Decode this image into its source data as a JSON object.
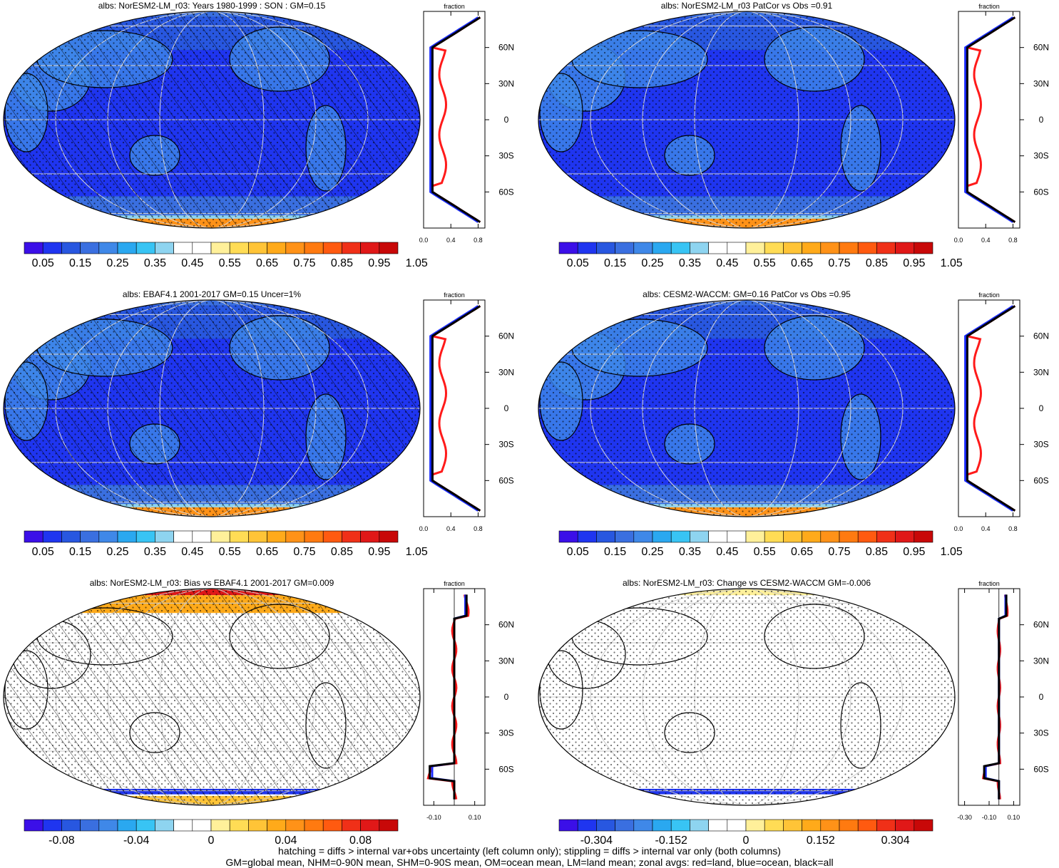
{
  "footer": {
    "line1": "hatching = diffs > internal var+obs uncertainty (left column only); stippling = diffs > internal var only (both columns)",
    "line2": "GM=global mean, NHM=0-90N mean, SHM=0-90S mean, OM=ocean mean, LM=land mean; zonal avgs: red=land, blue=ocean, black=all"
  },
  "palette": {
    "absolute": [
      "#3b0fe8",
      "#1f35f0",
      "#2857e0",
      "#3a6fe0",
      "#3f88e8",
      "#2aa8f0",
      "#38c4f4",
      "#8ed4f0",
      "#ffffff",
      "#ffffff",
      "#fff09a",
      "#ffdc55",
      "#ffc437",
      "#ffaa1a",
      "#ff9218",
      "#ff7a10",
      "#ff5a10",
      "#f03018",
      "#e01818",
      "#c80808"
    ],
    "difference": [
      "#3b0fe8",
      "#1f35f0",
      "#2857e0",
      "#3a6fe0",
      "#3f88e8",
      "#2aa8f0",
      "#38c4f4",
      "#8ed4f0",
      "#ffffff",
      "#ffffff",
      "#fff09a",
      "#ffdc55",
      "#ffc437",
      "#ffaa1a",
      "#ff9218",
      "#ff7a10",
      "#ff5a10",
      "#f03018",
      "#e01818",
      "#c80808"
    ]
  },
  "colors": {
    "land": "#ff1a1a",
    "ocean": "#1a2bff",
    "all": "#000000"
  },
  "panels": [
    {
      "id": "p1",
      "title": "albs: NorESM2-LM_r03: Years 1980-1999 : SON : GM=0.15",
      "kind": "absolute",
      "hatching": true,
      "stippling": true,
      "colorbar_labels": [
        "0.05",
        "0.15",
        "0.25",
        "0.35",
        "0.45",
        "0.55",
        "0.65",
        "0.75",
        "0.85",
        "0.95",
        "1.05"
      ],
      "zonal": {
        "header": "fraction",
        "xlim": [
          0,
          0.9
        ],
        "xticks": [
          "0.0",
          "0.4",
          "0.8"
        ],
        "lat_ticks": [
          "60N",
          "30N",
          "0",
          "30S",
          "60S"
        ],
        "lat_values": [
          60,
          30,
          0,
          -30,
          -60
        ],
        "ref_line": null
      }
    },
    {
      "id": "p2",
      "title": "albs: NorESM2-LM_r03 PatCor vs Obs =0.91",
      "kind": "absolute",
      "hatching": false,
      "stippling": true,
      "colorbar_labels": [
        "0.05",
        "0.15",
        "0.25",
        "0.35",
        "0.45",
        "0.55",
        "0.65",
        "0.75",
        "0.85",
        "0.95",
        "1.05"
      ],
      "zonal": {
        "header": "fraction",
        "xlim": [
          0,
          0.9
        ],
        "xticks": [
          "0.0",
          "0.4",
          "0.8"
        ],
        "lat_ticks": [
          "60N",
          "30N",
          "0",
          "30S",
          "60S"
        ],
        "lat_values": [
          60,
          30,
          0,
          -30,
          -60
        ],
        "ref_line": null
      }
    },
    {
      "id": "p3",
      "title": "albs: EBAF4.1 2001-2017 GM=0.15 Uncer=1%",
      "kind": "absolute",
      "hatching": true,
      "stippling": true,
      "colorbar_labels": [
        "0.05",
        "0.15",
        "0.25",
        "0.35",
        "0.45",
        "0.55",
        "0.65",
        "0.75",
        "0.85",
        "0.95",
        "1.05"
      ],
      "zonal": {
        "header": "fraction",
        "xlim": [
          0,
          0.9
        ],
        "xticks": [
          "0.0",
          "0.4",
          "0.8"
        ],
        "lat_ticks": [
          "60N",
          "30N",
          "0",
          "30S",
          "60S"
        ],
        "lat_values": [
          60,
          30,
          0,
          -30,
          -60
        ],
        "ref_line": null
      }
    },
    {
      "id": "p4",
      "title": "albs: CESM2-WACCM: GM=0.16 PatCor vs Obs =0.95",
      "kind": "absolute",
      "hatching": false,
      "stippling": true,
      "colorbar_labels": [
        "0.05",
        "0.15",
        "0.25",
        "0.35",
        "0.45",
        "0.55",
        "0.65",
        "0.75",
        "0.85",
        "0.95",
        "1.05"
      ],
      "zonal": {
        "header": "fraction",
        "xlim": [
          0,
          0.9
        ],
        "xticks": [
          "0.0",
          "0.4",
          "0.8"
        ],
        "lat_ticks": [
          "60N",
          "30N",
          "0",
          "30S",
          "60S"
        ],
        "lat_values": [
          60,
          30,
          0,
          -30,
          -60
        ],
        "ref_line": null
      }
    },
    {
      "id": "p5",
      "title": "albs: NorESM2-LM_r03: Bias vs EBAF4.1 2001-2017  GM=0.009",
      "kind": "difference",
      "hatching": true,
      "stippling": true,
      "colorbar_labels": [
        "-0.08",
        "-0.04",
        "0",
        "0.04",
        "0.08"
      ],
      "zonal": {
        "header": "fraction",
        "xlim": [
          -0.15,
          0.15
        ],
        "xticks": [
          "-0.10",
          "0.10"
        ],
        "lat_ticks": [
          "60N",
          "30N",
          "0",
          "30S",
          "60S"
        ],
        "lat_values": [
          60,
          30,
          0,
          -30,
          -60
        ],
        "ref_line": 0
      }
    },
    {
      "id": "p6",
      "title": "albs: NorESM2-LM_r03: Change vs CESM2-WACCM GM=-0.006",
      "kind": "difference",
      "hatching": false,
      "stippling": true,
      "colorbar_labels": [
        "-0.304",
        "-0.152",
        "0",
        "0.152",
        "0.304"
      ],
      "zonal": {
        "header": "fraction",
        "xlim": [
          -0.35,
          0.15
        ],
        "xticks": [
          "-0.30",
          "-0.10",
          "0.10"
        ],
        "lat_ticks": [
          "60N",
          "30N",
          "0",
          "30S",
          "60S"
        ],
        "lat_values": [
          60,
          30,
          0,
          -30,
          -60
        ],
        "ref_line": -0.02
      }
    }
  ]
}
